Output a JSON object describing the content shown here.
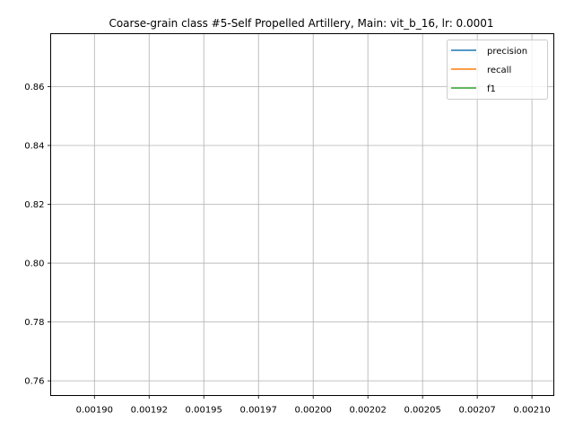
{
  "chart_data": {
    "type": "line",
    "title": "Coarse-grain class #5-Self Propelled Artillery, Main: vit_b_16, lr: 0.0001",
    "xlabel": "",
    "ylabel": "",
    "xlim": [
      0.00188,
      0.00211
    ],
    "ylim": [
      0.755,
      0.878
    ],
    "x_ticks": [
      0.0019,
      0.001925,
      0.00195,
      0.001975,
      0.002,
      0.002025,
      0.00205,
      0.002075,
      0.0021
    ],
    "x_tick_labels": [
      "0.00190",
      "0.00192",
      "0.00195",
      "0.00197",
      "0.00200",
      "0.00202",
      "0.00205",
      "0.00207",
      "0.00210"
    ],
    "y_ticks": [
      0.76,
      0.78,
      0.8,
      0.82,
      0.84,
      0.86
    ],
    "y_tick_labels": [
      "0.76",
      "0.78",
      "0.80",
      "0.82",
      "0.84",
      "0.86"
    ],
    "grid": true,
    "legend_position": "top-right",
    "series": [
      {
        "name": "precision",
        "color": "#1f77b4",
        "x": [],
        "y": []
      },
      {
        "name": "recall",
        "color": "#ff7f0e",
        "x": [],
        "y": []
      },
      {
        "name": "f1",
        "color": "#2ca02c",
        "x": [],
        "y": []
      }
    ]
  }
}
